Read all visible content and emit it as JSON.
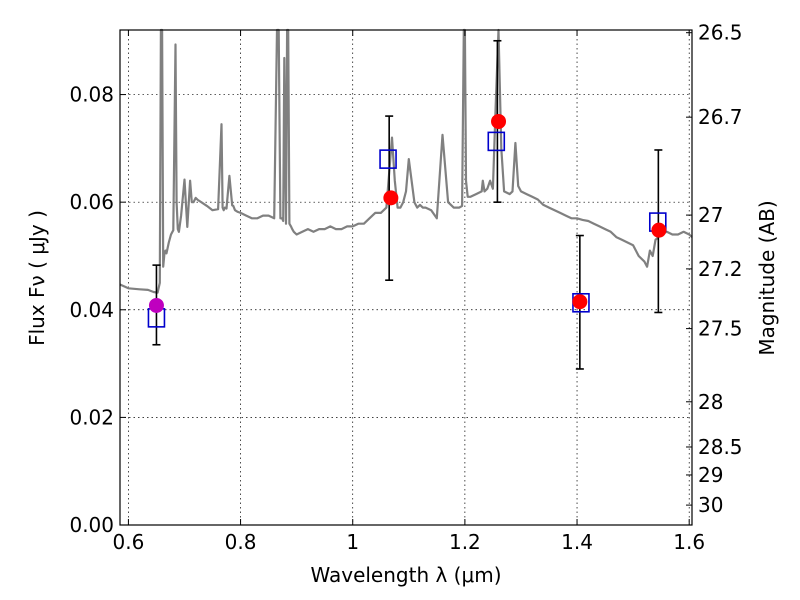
{
  "chart_data": {
    "type": "scatter",
    "xlabel": "Wavelength  λ (μm)",
    "ylabel_left": "Flux  Fν  ( μJy )",
    "ylabel_right": "Magnitude (AB)",
    "xlim": [
      0.585,
      1.605
    ],
    "ylim": [
      0.0,
      0.092
    ],
    "grid": true,
    "x_ticks": [
      {
        "value": 0.6,
        "label": "0.6"
      },
      {
        "value": 0.8,
        "label": "0.8"
      },
      {
        "value": 1.0,
        "label": "1"
      },
      {
        "value": 1.2,
        "label": "1.2"
      },
      {
        "value": 1.4,
        "label": "1.4"
      },
      {
        "value": 1.6,
        "label": "1.6"
      }
    ],
    "y_ticks": [
      {
        "value": 0.0,
        "label": "0.00"
      },
      {
        "value": 0.02,
        "label": "0.02"
      },
      {
        "value": 0.04,
        "label": "0.04"
      },
      {
        "value": 0.06,
        "label": "0.06"
      },
      {
        "value": 0.08,
        "label": "0.08"
      }
    ],
    "magnitude_ticks": [
      {
        "value": 0.0915,
        "label": "26.5"
      },
      {
        "value": 0.0758,
        "label": "26.7"
      },
      {
        "value": 0.0576,
        "label": "27"
      },
      {
        "value": 0.0476,
        "label": "27.2"
      },
      {
        "value": 0.0365,
        "label": "27.5"
      },
      {
        "value": 0.0229,
        "label": "28"
      },
      {
        "value": 0.0145,
        "label": "28.5"
      },
      {
        "value": 0.0093,
        "label": "29"
      },
      {
        "value": 0.0037,
        "label": "30"
      }
    ],
    "series": [
      {
        "role": "model_spectrum",
        "style": "line",
        "color": "#808080",
        "x": [
          0.585,
          0.6,
          0.62,
          0.635,
          0.645,
          0.652,
          0.656,
          0.658,
          0.66,
          0.662,
          0.664,
          0.666,
          0.668,
          0.672,
          0.676,
          0.68,
          0.684,
          0.686,
          0.688,
          0.69,
          0.694,
          0.7,
          0.705,
          0.71,
          0.713,
          0.716,
          0.72,
          0.724,
          0.73,
          0.74,
          0.75,
          0.76,
          0.766,
          0.768,
          0.77,
          0.772,
          0.775,
          0.78,
          0.785,
          0.787,
          0.79,
          0.795,
          0.8,
          0.81,
          0.82,
          0.83,
          0.84,
          0.85,
          0.86,
          0.865,
          0.868,
          0.871,
          0.874,
          0.876,
          0.878,
          0.881,
          0.883,
          0.885,
          0.887,
          0.89,
          0.892,
          0.895,
          0.9,
          0.91,
          0.92,
          0.93,
          0.94,
          0.95,
          0.96,
          0.97,
          0.98,
          0.99,
          1.0,
          1.01,
          1.02,
          1.03,
          1.04,
          1.05,
          1.06,
          1.07,
          1.075,
          1.08,
          1.085,
          1.09,
          1.095,
          1.1,
          1.11,
          1.115,
          1.12,
          1.125,
          1.13,
          1.14,
          1.15,
          1.16,
          1.17,
          1.18,
          1.19,
          1.195,
          1.198,
          1.2,
          1.202,
          1.205,
          1.21,
          1.22,
          1.23,
          1.232,
          1.235,
          1.24,
          1.245,
          1.25,
          1.255,
          1.26,
          1.265,
          1.27,
          1.28,
          1.285,
          1.29,
          1.295,
          1.3,
          1.31,
          1.32,
          1.33,
          1.34,
          1.35,
          1.36,
          1.37,
          1.38,
          1.39,
          1.4,
          1.41,
          1.42,
          1.43,
          1.44,
          1.45,
          1.46,
          1.47,
          1.48,
          1.49,
          1.5,
          1.51,
          1.52,
          1.525,
          1.53,
          1.535,
          1.54,
          1.55,
          1.56,
          1.57,
          1.58,
          1.59,
          1.6,
          1.605
        ],
        "values": [
          0.0447,
          0.044,
          0.0438,
          0.0437,
          0.0433,
          0.0432,
          0.045,
          0.095,
          0.095,
          0.048,
          0.0502,
          0.051,
          0.0505,
          0.0525,
          0.054,
          0.0548,
          0.0893,
          0.06,
          0.055,
          0.0545,
          0.0575,
          0.0642,
          0.0554,
          0.064,
          0.06,
          0.06,
          0.0608,
          0.0604,
          0.06,
          0.0593,
          0.0585,
          0.0587,
          0.0745,
          0.059,
          0.0585,
          0.059,
          0.0588,
          0.0649,
          0.0594,
          0.0593,
          0.0585,
          0.0582,
          0.058,
          0.0575,
          0.057,
          0.057,
          0.0575,
          0.0575,
          0.057,
          0.095,
          0.095,
          0.057,
          0.057,
          0.0565,
          0.0868,
          0.056,
          0.095,
          0.095,
          0.056,
          0.0555,
          0.055,
          0.0545,
          0.054,
          0.0545,
          0.055,
          0.0545,
          0.055,
          0.055,
          0.0555,
          0.055,
          0.055,
          0.0555,
          0.0555,
          0.056,
          0.056,
          0.057,
          0.058,
          0.058,
          0.059,
          0.072,
          0.064,
          0.059,
          0.059,
          0.06,
          0.062,
          0.068,
          0.06,
          0.059,
          0.0595,
          0.059,
          0.059,
          0.0585,
          0.057,
          0.0725,
          0.06,
          0.059,
          0.059,
          0.0593,
          0.095,
          0.095,
          0.064,
          0.061,
          0.061,
          0.0615,
          0.062,
          0.064,
          0.062,
          0.0625,
          0.064,
          0.0625,
          0.078,
          0.095,
          0.07,
          0.062,
          0.0615,
          0.062,
          0.071,
          0.063,
          0.062,
          0.0615,
          0.061,
          0.0605,
          0.0595,
          0.059,
          0.0585,
          0.058,
          0.0575,
          0.057,
          0.057,
          0.0567,
          0.0565,
          0.056,
          0.0555,
          0.055,
          0.0545,
          0.0535,
          0.053,
          0.0525,
          0.052,
          0.05,
          0.049,
          0.048,
          0.051,
          0.05,
          0.053,
          0.054,
          0.0545,
          0.054,
          0.054,
          0.0545,
          0.054,
          0.0535
        ]
      },
      {
        "role": "observed_flux",
        "style": "errorbar",
        "color": "#000000",
        "x": [
          0.65,
          1.065,
          1.258,
          1.405,
          1.545
        ],
        "values": [
          0.0408,
          0.0608,
          0.075,
          0.0415,
          0.0548
        ],
        "err_low": [
          0.0335,
          0.0455,
          0.06,
          0.029,
          0.0395
        ],
        "err_high": [
          0.0483,
          0.076,
          0.09,
          0.0538,
          0.0697
        ]
      },
      {
        "role": "model_points",
        "style": "markers",
        "marker": "circle",
        "colors": [
          "#bf00bf",
          "#ff0000",
          "#ff0000",
          "#ff0000",
          "#ff0000"
        ],
        "x": [
          0.65,
          1.068,
          1.26,
          1.405,
          1.546
        ],
        "values": [
          0.0408,
          0.0608,
          0.075,
          0.0415,
          0.0548
        ]
      },
      {
        "role": "synthetic_photometry",
        "style": "markers",
        "marker": "square-open",
        "color": "#0000cc",
        "x": [
          0.65,
          1.063,
          1.256,
          1.407,
          1.544
        ],
        "values": [
          0.0385,
          0.068,
          0.0713,
          0.0413,
          0.0563
        ]
      }
    ]
  }
}
